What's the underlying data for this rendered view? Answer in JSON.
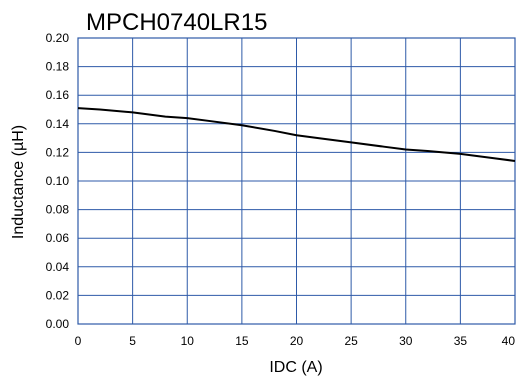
{
  "chart_data": {
    "type": "line",
    "title": "MPCH0740LR15",
    "xlabel": "IDC (A)",
    "ylabel": "Inductance (µH)",
    "xlim": [
      0,
      40
    ],
    "ylim": [
      0,
      0.2
    ],
    "grid": true,
    "x_ticks": [
      "0",
      "5",
      "10",
      "15",
      "20",
      "25",
      "30",
      "35",
      "40"
    ],
    "y_ticks": [
      "0.00",
      "0.02",
      "0.04",
      "0.06",
      "0.08",
      "0.10",
      "0.12",
      "0.14",
      "0.16",
      "0.18",
      "0.20"
    ],
    "colors": {
      "grid": "#2e5aa8",
      "line": "#000000"
    },
    "series": [
      {
        "x": [
          0,
          2,
          5,
          8,
          10,
          12,
          15,
          18,
          20,
          22,
          25,
          28,
          30,
          32,
          35,
          38,
          40
        ],
        "y": [
          0.151,
          0.15,
          0.148,
          0.145,
          0.144,
          0.142,
          0.139,
          0.135,
          0.132,
          0.13,
          0.127,
          0.124,
          0.122,
          0.121,
          0.119,
          0.116,
          0.114
        ]
      }
    ]
  }
}
